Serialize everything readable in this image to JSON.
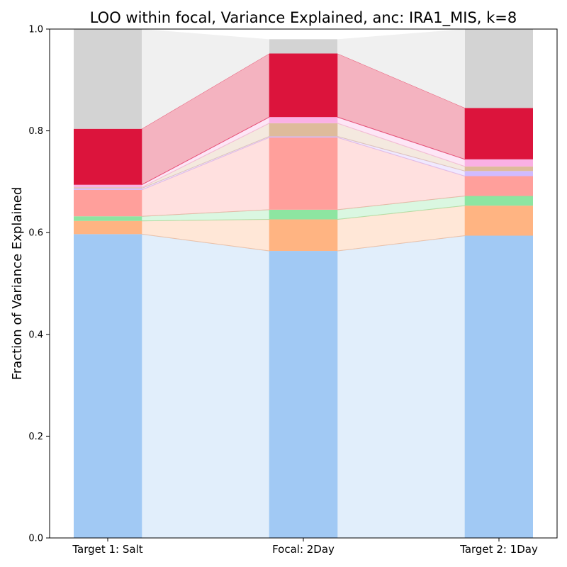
{
  "chart_data": {
    "type": "bar",
    "stacked": true,
    "title": "LOO within focal, Variance Explained, anc: IRA1_MIS, k=8",
    "xlabel": "",
    "ylabel": "Fraction of Variance Explained",
    "ylim": [
      0,
      1.0
    ],
    "yticks": [
      "0.0",
      "0.2",
      "0.4",
      "0.6",
      "0.8",
      "1.0"
    ],
    "categories": [
      "Target 1: Salt",
      "Focal: 2Day",
      "Target 2: 1Day"
    ],
    "grid": false,
    "legend": "none",
    "series": [
      {
        "color": "#a1c9f4",
        "values": [
          0.597,
          0.564,
          0.594
        ]
      },
      {
        "color": "#ffb482",
        "values": [
          0.026,
          0.062,
          0.059
        ]
      },
      {
        "color": "#8de5a1",
        "values": [
          0.009,
          0.019,
          0.019
        ]
      },
      {
        "color": "#ff9f9b",
        "values": [
          0.052,
          0.142,
          0.039
        ]
      },
      {
        "color": "#d0bbff",
        "values": [
          0.003,
          0.002,
          0.01
        ]
      },
      {
        "color": "#debb9b",
        "values": [
          0.002,
          0.026,
          0.009
        ]
      },
      {
        "color": "#fab0e4",
        "values": [
          0.005,
          0.012,
          0.014
        ]
      },
      {
        "color": "#dc143c",
        "values": [
          0.11,
          0.125,
          0.101
        ]
      },
      {
        "color": "#d3d3d3",
        "values": [
          0.196,
          0.028,
          0.155
        ]
      }
    ]
  }
}
